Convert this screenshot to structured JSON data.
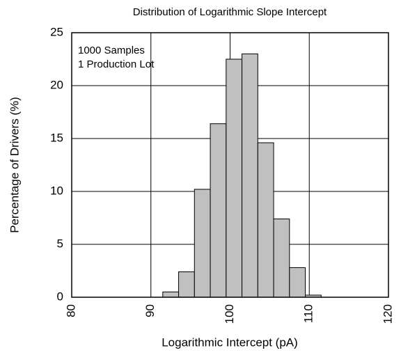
{
  "chart_data": {
    "type": "histogram",
    "title": "Distribution of Logarithmic Slope Intercept",
    "xlabel": "Logarithmic Intercept (pA)",
    "ylabel": "Percentage of Drivers (%)",
    "annotations": [
      "1000 Samples",
      "1 Production Lot"
    ],
    "bins": [
      91.5,
      93.5,
      95.5,
      97.5,
      99.5,
      101.5,
      103.5,
      105.5,
      107.5,
      109.5,
      111.5
    ],
    "values": [
      0.5,
      2.4,
      10.2,
      16.4,
      22.5,
      23.0,
      14.6,
      7.4,
      2.8,
      0.2
    ],
    "color": "#c0c0c0",
    "xlim": [
      80,
      120
    ],
    "xticks": [
      80,
      90,
      100,
      110,
      120
    ],
    "ylim": [
      0,
      25
    ],
    "yticks": [
      0,
      5,
      10,
      15,
      20,
      25
    ],
    "grid": true
  }
}
